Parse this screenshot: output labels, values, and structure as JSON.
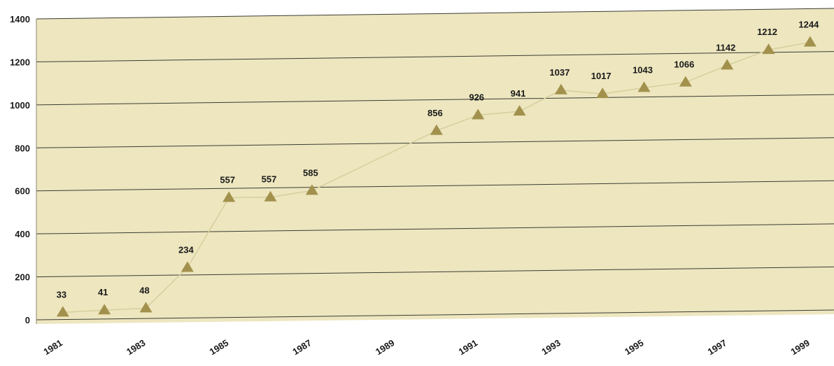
{
  "chart_data": {
    "type": "line",
    "title": "",
    "xlabel": "",
    "ylabel": "",
    "ylim": [
      0,
      1400
    ],
    "yticks": [
      0,
      200,
      400,
      600,
      800,
      1000,
      1200,
      1400
    ],
    "xlim": [
      1981,
      1999
    ],
    "xticks": [
      "1981",
      "1983",
      "1985",
      "1987",
      "1989",
      "1991",
      "1993",
      "1995",
      "1997",
      "1999"
    ],
    "grid": true,
    "series": [
      {
        "points": [
          {
            "x": 1981.2,
            "y": 33
          },
          {
            "x": 1982.2,
            "y": 41
          },
          {
            "x": 1983.2,
            "y": 48
          },
          {
            "x": 1984.2,
            "y": 234
          },
          {
            "x": 1985.2,
            "y": 557
          },
          {
            "x": 1986.2,
            "y": 557
          },
          {
            "x": 1987.2,
            "y": 585
          },
          {
            "x": 1990.2,
            "y": 856
          },
          {
            "x": 1991.2,
            "y": 926
          },
          {
            "x": 1992.2,
            "y": 941
          },
          {
            "x": 1993.2,
            "y": 1037
          },
          {
            "x": 1994.2,
            "y": 1017
          },
          {
            "x": 1995.2,
            "y": 1043
          },
          {
            "x": 1996.2,
            "y": 1066
          },
          {
            "x": 1997.2,
            "y": 1142
          },
          {
            "x": 1998.2,
            "y": 1212
          },
          {
            "x": 1999.2,
            "y": 1244
          }
        ]
      }
    ],
    "colors": {
      "plot_background": "#ede6bf",
      "grid": "#3c3c34",
      "line": "#d6cf9e",
      "marker": "#a2914c"
    }
  }
}
